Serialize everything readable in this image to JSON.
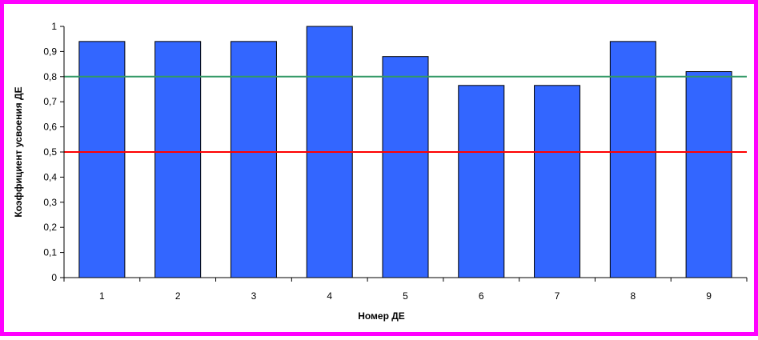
{
  "chart_data": {
    "type": "bar",
    "title": "",
    "xlabel": "Номер ДЕ",
    "ylabel": "Коэффициент усвоения ДЕ",
    "categories": [
      "1",
      "2",
      "3",
      "4",
      "5",
      "6",
      "7",
      "8",
      "9"
    ],
    "values": [
      0.94,
      0.94,
      0.94,
      1.0,
      0.88,
      0.765,
      0.765,
      0.94,
      0.82
    ],
    "ylim": [
      0,
      1
    ],
    "yticks": [
      0,
      0.1,
      0.2,
      0.3,
      0.4,
      0.5,
      0.6,
      0.7,
      0.8,
      0.9,
      1
    ],
    "ytick_labels": [
      "0",
      "0,1",
      "0,2",
      "0,3",
      "0,4",
      "0,5",
      "0,6",
      "0,7",
      "0,8",
      "0,9",
      "1"
    ],
    "reference_lines": [
      {
        "value": 0.8,
        "color": "#339966"
      },
      {
        "value": 0.5,
        "color": "#ff0000"
      }
    ],
    "bar_color": "#3366ff",
    "grid": false,
    "legend": "none"
  },
  "colors": {
    "frame_border": "#ff00ff",
    "background": "#ffffff"
  }
}
